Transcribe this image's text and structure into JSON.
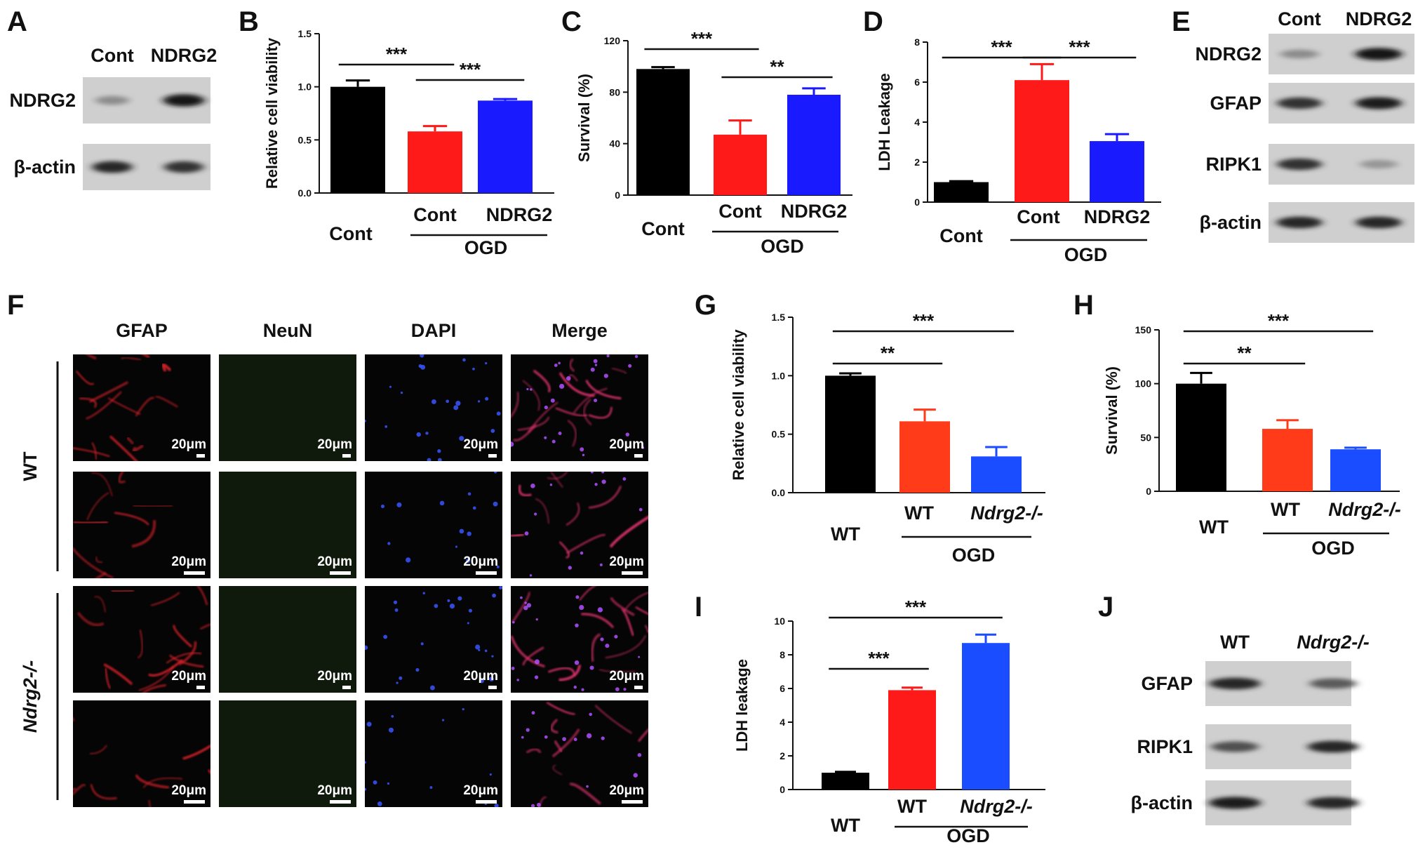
{
  "figure": {
    "panel_labels": [
      "A",
      "B",
      "C",
      "D",
      "E",
      "F",
      "G",
      "H",
      "I",
      "J"
    ],
    "blots": {
      "A": {
        "lanes": [
          "Cont",
          "NDRG2"
        ],
        "rows": [
          "NDRG2",
          "β-actin"
        ],
        "band_intensity": [
          [
            0.35,
            0.95
          ],
          [
            0.85,
            0.8
          ]
        ]
      },
      "E": {
        "lanes": [
          "Cont",
          "NDRG2"
        ],
        "rows": [
          "NDRG2",
          "GFAP",
          "RIPK1",
          "β-actin"
        ],
        "band_intensity": [
          [
            0.35,
            0.95
          ],
          [
            0.8,
            0.9
          ],
          [
            0.8,
            0.3
          ],
          [
            0.85,
            0.85
          ]
        ]
      },
      "J": {
        "lanes": [
          "WT",
          "Ndrg2-/-"
        ],
        "rows": [
          "GFAP",
          "RIPK1",
          "β-actin"
        ],
        "band_intensity": [
          [
            0.85,
            0.6
          ],
          [
            0.65,
            0.85
          ],
          [
            0.9,
            0.85
          ]
        ]
      }
    },
    "micrograph": {
      "columns": [
        "GFAP",
        "NeuN",
        "DAPI",
        "Merge"
      ],
      "groups": [
        "WT",
        "Ndrg2-/-"
      ],
      "scale_bar": "20μm",
      "channel_colors": [
        "#e0202a",
        "#1f3a1c",
        "#2a44ff",
        "#e03a8a"
      ]
    },
    "ogd_label": "OGD"
  },
  "chart_data": [
    {
      "id": "B",
      "type": "bar",
      "categories": [
        "Cont",
        "Cont",
        "NDRG2"
      ],
      "group_label": "OGD",
      "values": [
        1.0,
        0.58,
        0.87
      ],
      "errors": [
        0.06,
        0.05,
        0.015
      ],
      "ylabel": "Relative cell viability",
      "ylim": [
        0,
        1.5
      ],
      "yticks": [
        "0.0",
        "0.5",
        "1.0",
        "1.5"
      ],
      "colors": [
        "#000000",
        "#ff1a1a",
        "#1a1aff"
      ],
      "sig": [
        {
          "from": 0,
          "to": 1,
          "label": "***"
        },
        {
          "from": 1,
          "to": 2,
          "label": "***"
        }
      ]
    },
    {
      "id": "C",
      "type": "bar",
      "categories": [
        "Cont",
        "Cont",
        "NDRG2"
      ],
      "group_label": "OGD",
      "values": [
        98,
        47,
        78
      ],
      "errors": [
        1.5,
        11,
        5
      ],
      "ylabel": "Survival (%)",
      "ylim": [
        0,
        120
      ],
      "yticks": [
        "0",
        "40",
        "80",
        "120"
      ],
      "colors": [
        "#000000",
        "#ff1a1a",
        "#1a1aff"
      ],
      "sig": [
        {
          "from": 0,
          "to": 1,
          "label": "***"
        },
        {
          "from": 1,
          "to": 2,
          "label": "**"
        }
      ]
    },
    {
      "id": "D",
      "type": "bar",
      "categories": [
        "Cont",
        "Cont",
        "NDRG2"
      ],
      "group_label": "OGD",
      "values": [
        1.0,
        6.1,
        3.05
      ],
      "errors": [
        0.05,
        0.8,
        0.35
      ],
      "ylabel": "LDH Leakage",
      "ylim": [
        0,
        8
      ],
      "yticks": [
        "0",
        "2",
        "4",
        "6",
        "8"
      ],
      "colors": [
        "#000000",
        "#ff1a1a",
        "#1a1aff"
      ],
      "sig": [
        {
          "from": 0,
          "to": 1,
          "label": "***"
        },
        {
          "from": 1,
          "to": 2,
          "label": "***"
        }
      ]
    },
    {
      "id": "G",
      "type": "bar",
      "categories": [
        "WT",
        "WT",
        "Ndrg2-/-"
      ],
      "group_label": "OGD",
      "values": [
        1.0,
        0.61,
        0.31
      ],
      "errors": [
        0.02,
        0.1,
        0.08
      ],
      "ylabel": "Relative cell viability",
      "ylim": [
        0,
        1.5
      ],
      "yticks": [
        "0.0",
        "0.5",
        "1.0",
        "1.5"
      ],
      "colors": [
        "#000000",
        "#ff3b1a",
        "#1a4dff"
      ],
      "sig": [
        {
          "from": 0,
          "to": 1,
          "label": "**"
        },
        {
          "from": 0,
          "to": 2,
          "label": "***"
        }
      ]
    },
    {
      "id": "H",
      "type": "bar",
      "categories": [
        "WT",
        "WT",
        "Ndrg2-/-"
      ],
      "group_label": "OGD",
      "values": [
        100,
        58,
        39
      ],
      "errors": [
        10,
        8,
        1.5
      ],
      "ylabel": "Survival (%)",
      "ylim": [
        0,
        150
      ],
      "yticks": [
        "0",
        "50",
        "100",
        "150"
      ],
      "colors": [
        "#000000",
        "#ff3b1a",
        "#1a4dff"
      ],
      "sig": [
        {
          "from": 0,
          "to": 1,
          "label": "**"
        },
        {
          "from": 0,
          "to": 2,
          "label": "***"
        }
      ]
    },
    {
      "id": "I",
      "type": "bar",
      "categories": [
        "WT",
        "WT",
        "Ndrg2-/-"
      ],
      "group_label": "OGD",
      "values": [
        1.0,
        5.9,
        8.7
      ],
      "errors": [
        0.05,
        0.15,
        0.5
      ],
      "ylabel": "LDH leakage",
      "ylim": [
        0,
        10
      ],
      "yticks": [
        "0",
        "2",
        "4",
        "6",
        "8",
        "10"
      ],
      "colors": [
        "#000000",
        "#ff1a1a",
        "#1a4dff"
      ],
      "sig": [
        {
          "from": 0,
          "to": 1,
          "label": "***"
        },
        {
          "from": 0,
          "to": 2,
          "label": "***"
        }
      ]
    }
  ]
}
